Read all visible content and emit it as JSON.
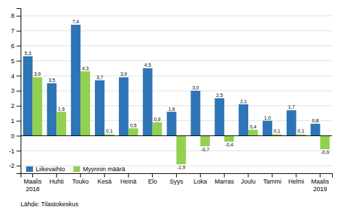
{
  "chart_data": {
    "type": "bar",
    "categories": [
      "Maalis\n2018",
      "Huhti",
      "Touko",
      "Kesä",
      "Heinä",
      "Elo",
      "Syys",
      "Loka",
      "Marras",
      "Joulu",
      "Tammi",
      "Helmi",
      "Maalis\n2019"
    ],
    "series": [
      {
        "name": "Liikevaihto",
        "color": "#2E75B6",
        "values": [
          5.3,
          3.5,
          7.4,
          3.7,
          3.9,
          4.5,
          1.6,
          3.0,
          2.5,
          2.1,
          1.0,
          1.7,
          0.8
        ],
        "value_labels": [
          "5,3",
          "3,5",
          "7,4",
          "3,7",
          "3,9",
          "4,5",
          "1,6",
          "3,0",
          "2,5",
          "2,1",
          "1,0",
          "1,7",
          "0,8"
        ]
      },
      {
        "name": "Myynnin määrä",
        "color": "#92D050",
        "values": [
          3.9,
          1.6,
          4.3,
          0.1,
          0.5,
          0.9,
          -1.9,
          -0.7,
          -0.4,
          0.4,
          0.1,
          0.1,
          -0.9
        ],
        "value_labels": [
          "3,9",
          "1,6",
          "4,3",
          "0,1",
          "0,5",
          "0,9",
          "-1,9",
          "-0,7",
          "-0,4",
          "0,4",
          "0,1",
          "0,1",
          "-0,9"
        ]
      }
    ],
    "ylim": [
      -2.5,
      8.5
    ],
    "yticks": [
      -2,
      -1,
      0,
      1,
      2,
      3,
      4,
      5,
      6,
      7,
      8
    ],
    "grid": true,
    "legend": "lower left",
    "data_labels": true,
    "annotations": [
      "Lähde: Tilastokeskus"
    ]
  }
}
